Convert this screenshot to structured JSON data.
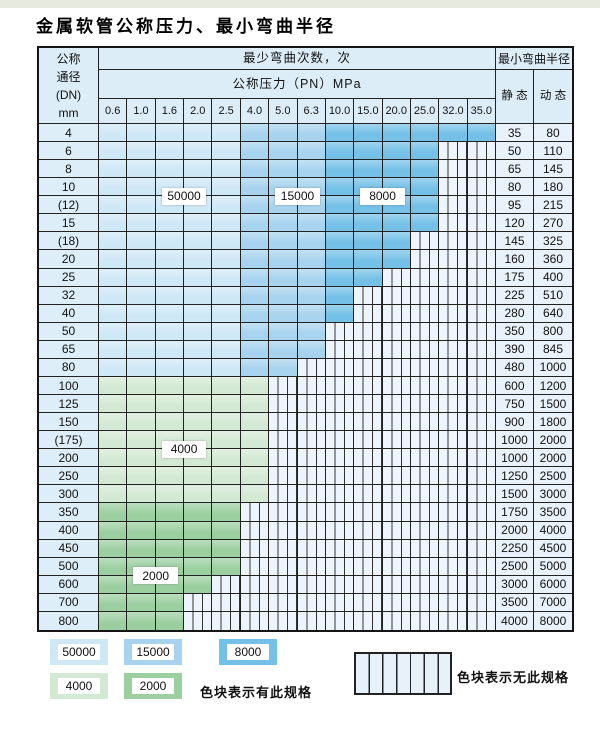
{
  "page": {
    "title": "金属软管公称压力、最小弯曲半径"
  },
  "colors": {
    "band_50000": "#cfe8f6",
    "band_15000": "#a7d3ee",
    "band_8000": "#74c0e7",
    "band_4000": "#d4e9d4",
    "band_2000": "#9bcfa0",
    "hatch_bg": "#eef4fb",
    "header_bg": "#dcedf8",
    "grid_line": "#222222"
  },
  "table": {
    "dn_header_lines": [
      "公称",
      "通径",
      "(DN)",
      "mm"
    ],
    "cycles_header": "最少弯曲次数，次",
    "pressure_header": "公称压力（PN）MPa",
    "radius_header": "最小弯曲半径",
    "static_header": "静 态",
    "dynamic_header": "动 态",
    "pressures": [
      "0.6",
      "1.0",
      "1.6",
      "2.0",
      "2.5",
      "4.0",
      "5.0",
      "6.3",
      "10.0",
      "15.0",
      "20.0",
      "25.0",
      "32.0",
      "35.0"
    ],
    "blue_bands_by_column": {
      "50000": [
        0,
        4
      ],
      "15000": [
        5,
        7
      ],
      "8000": [
        8,
        13
      ]
    },
    "rows": [
      {
        "dn": "4",
        "static": "35",
        "dynamic": "80",
        "palette": "blue",
        "colored_until": 13
      },
      {
        "dn": "6",
        "static": "50",
        "dynamic": "110",
        "palette": "blue",
        "colored_until": 11
      },
      {
        "dn": "8",
        "static": "65",
        "dynamic": "145",
        "palette": "blue",
        "colored_until": 11
      },
      {
        "dn": "10",
        "static": "80",
        "dynamic": "180",
        "palette": "blue",
        "colored_until": 11
      },
      {
        "dn": "(12)",
        "static": "95",
        "dynamic": "215",
        "palette": "blue",
        "colored_until": 11
      },
      {
        "dn": "15",
        "static": "120",
        "dynamic": "270",
        "palette": "blue",
        "colored_until": 11
      },
      {
        "dn": "(18)",
        "static": "145",
        "dynamic": "325",
        "palette": "blue",
        "colored_until": 10
      },
      {
        "dn": "20",
        "static": "160",
        "dynamic": "360",
        "palette": "blue",
        "colored_until": 10
      },
      {
        "dn": "25",
        "static": "175",
        "dynamic": "400",
        "palette": "blue",
        "colored_until": 9
      },
      {
        "dn": "32",
        "static": "225",
        "dynamic": "510",
        "palette": "blue",
        "colored_until": 8
      },
      {
        "dn": "40",
        "static": "280",
        "dynamic": "640",
        "palette": "blue",
        "colored_until": 8
      },
      {
        "dn": "50",
        "static": "350",
        "dynamic": "800",
        "palette": "blue",
        "colored_until": 7
      },
      {
        "dn": "65",
        "static": "390",
        "dynamic": "845",
        "palette": "blue",
        "colored_until": 7
      },
      {
        "dn": "80",
        "static": "480",
        "dynamic": "1000",
        "palette": "blue",
        "colored_until": 6
      },
      {
        "dn": "100",
        "static": "600",
        "dynamic": "1200",
        "palette": "green-4000",
        "colored_until": 5
      },
      {
        "dn": "125",
        "static": "750",
        "dynamic": "1500",
        "palette": "green-4000",
        "colored_until": 5
      },
      {
        "dn": "150",
        "static": "900",
        "dynamic": "1800",
        "palette": "green-4000",
        "colored_until": 5
      },
      {
        "dn": "(175)",
        "static": "1000",
        "dynamic": "2000",
        "palette": "green-4000",
        "colored_until": 5
      },
      {
        "dn": "200",
        "static": "1000",
        "dynamic": "2000",
        "palette": "green-4000",
        "colored_until": 5
      },
      {
        "dn": "250",
        "static": "1250",
        "dynamic": "2500",
        "palette": "green-4000",
        "colored_until": 5
      },
      {
        "dn": "300",
        "static": "1500",
        "dynamic": "3000",
        "palette": "green-4000",
        "colored_until": 5
      },
      {
        "dn": "350",
        "static": "1750",
        "dynamic": "3500",
        "palette": "green-2000",
        "colored_until": 4
      },
      {
        "dn": "400",
        "static": "2000",
        "dynamic": "4000",
        "palette": "green-2000",
        "colored_until": 4
      },
      {
        "dn": "450",
        "static": "2250",
        "dynamic": "4500",
        "palette": "green-2000",
        "colored_until": 4
      },
      {
        "dn": "500",
        "static": "2500",
        "dynamic": "5000",
        "palette": "green-2000",
        "colored_until": 4
      },
      {
        "dn": "600",
        "static": "3000",
        "dynamic": "6000",
        "palette": "green-2000",
        "colored_until": 3
      },
      {
        "dn": "700",
        "static": "3500",
        "dynamic": "7000",
        "palette": "green-2000",
        "colored_until": 2
      },
      {
        "dn": "800",
        "static": "4000",
        "dynamic": "8000",
        "palette": "green-2000",
        "colored_until": 2
      }
    ]
  },
  "overlays": [
    {
      "text": "50000",
      "col_start": 2,
      "col_end": 3,
      "row_boundary": 4
    },
    {
      "text": "15000",
      "col_start": 6,
      "col_end": 7,
      "row_boundary": 4
    },
    {
      "text": "8000",
      "col_start": 9,
      "col_end": 10,
      "row_boundary": 4
    },
    {
      "text": "4000",
      "col_start": 2,
      "col_end": 3,
      "row_boundary": 18
    },
    {
      "text": "2000",
      "col_start": 1,
      "col_end": 2,
      "row_boundary": 25
    }
  ],
  "legend": {
    "items": [
      {
        "value": "50000",
        "color_key": "band_50000"
      },
      {
        "value": "15000",
        "color_key": "band_15000"
      },
      {
        "value": "8000",
        "color_key": "band_8000"
      },
      {
        "value": "4000",
        "color_key": "band_4000"
      },
      {
        "value": "2000",
        "color_key": "band_2000"
      }
    ],
    "has_spec_text": "色块表示有此规格",
    "no_spec_text": "色块表示无此规格"
  }
}
